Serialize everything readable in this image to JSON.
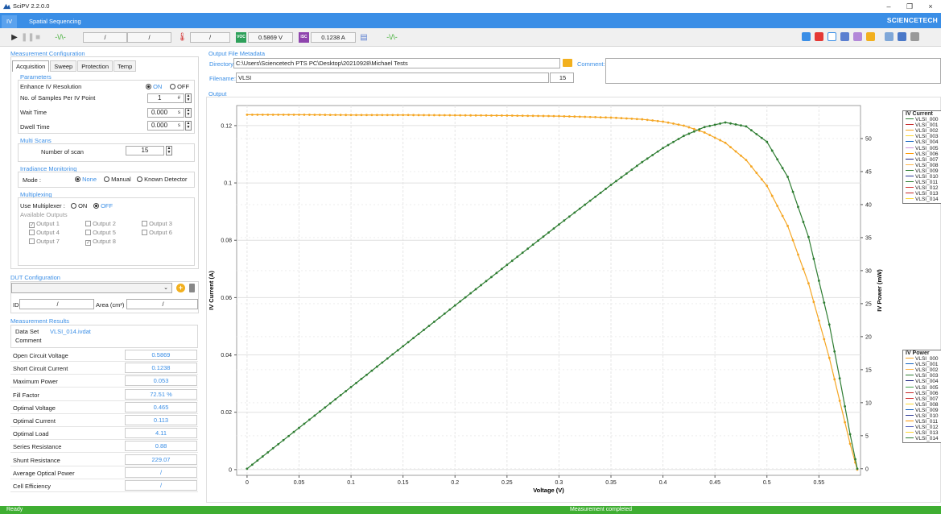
{
  "app": {
    "title": "SciPV 2.2.0.0",
    "brand": "SCIENCETECH"
  },
  "window": {
    "minimize": "–",
    "restore": "❐",
    "close": "×"
  },
  "tabs": [
    "IV",
    "Spatial Sequencing"
  ],
  "toolbar": {
    "field1": "/",
    "field2": "/",
    "temp_value": "/",
    "voc_badge": "VOC",
    "voc_value": "0.5869 V",
    "isc_badge": "ISC",
    "isc_value": "0.1238 A"
  },
  "measurement_config": {
    "title": "Measurement Configuration",
    "tabs": [
      "Acquisition",
      "Sweep",
      "Protection",
      "Temp"
    ],
    "parameters_title": "Parameters",
    "enhance_label": "Enhance IV Resolution",
    "on": "ON",
    "off": "OFF",
    "samples_label": "No. of Samples Per IV Point",
    "samples_value": "1",
    "samples_unit": "#",
    "wait_label": "Wait Time",
    "wait_value": "0.000",
    "wait_unit": "s",
    "dwell_label": "Dwell Time",
    "dwell_value": "0.000",
    "dwell_unit": "s",
    "multiscans_title": "Multi Scans",
    "scan_label": "Number of scan",
    "scan_value": "15",
    "irradiance_title": "Irradiance Monitoring",
    "mode_label": "Mode :",
    "modes": [
      "None",
      "Manual",
      "Known Detector"
    ],
    "multiplexing_title": "Multiplexing",
    "use_mux_label": "Use Multiplexer :",
    "mux_on": "ON",
    "mux_off": "OFF",
    "available_outputs": "Available Outputs",
    "outputs": [
      {
        "label": "Output 1",
        "checked": true
      },
      {
        "label": "Output 2",
        "checked": false
      },
      {
        "label": "Output 3",
        "checked": false
      },
      {
        "label": "Output 4",
        "checked": false
      },
      {
        "label": "Output 5",
        "checked": false
      },
      {
        "label": "Output 6",
        "checked": false
      },
      {
        "label": "Output 7",
        "checked": false
      },
      {
        "label": "Output 8",
        "checked": true
      }
    ]
  },
  "dut": {
    "title": "DUT Configuration",
    "id_label": "ID",
    "id_value": "/",
    "area_label": "Area (cm²)",
    "area_value": "/"
  },
  "results": {
    "title": "Measurement Results",
    "dataset_label": "Data Set",
    "dataset_value": "VLSI_014.ivdat",
    "comment_label": "Comment",
    "rows": [
      {
        "label": "Open Circuit Voltage",
        "value": "0.5869"
      },
      {
        "label": "Short Circuit Current",
        "value": "0.1238"
      },
      {
        "label": "Maximum Power",
        "value": "0.053"
      },
      {
        "label": "Fill Factor",
        "value": "72.51 %"
      },
      {
        "label": "Optimal Voltage",
        "value": "0.465"
      },
      {
        "label": "Optimal Current",
        "value": "0.113"
      },
      {
        "label": "Optimal Load",
        "value": "4.11"
      },
      {
        "label": "Series Resistance",
        "value": "0.88"
      },
      {
        "label": "Shunt Resistance",
        "value": "229.07"
      },
      {
        "label": "Average Optical Power",
        "value": "/"
      },
      {
        "label": "Cell Efficiency",
        "value": "/"
      }
    ]
  },
  "output_file": {
    "title": "Output File Metadata",
    "directory_label": "Directory:",
    "directory_value": "C:\\Users\\Sciencetech PTS PC\\Desktop\\20210928\\Michael Tests",
    "filename_label": "Filename:",
    "filename_value": "VLSI",
    "index_value": "15",
    "comment_label": "Comment:"
  },
  "output_title": "Output",
  "status": {
    "left": "Ready",
    "center": "Measurement completed"
  },
  "colors": {
    "accent": "#3a8ee6",
    "status": "#3fae32",
    "current_curve": "#f5a623",
    "power_curve": "#2e7d32"
  },
  "chart_data": {
    "type": "line",
    "xlabel": "Voltage (V)",
    "ylabel": "IV Current (A)",
    "y2label": "IV Power (mW)",
    "xlim": [
      -0.01,
      0.59
    ],
    "ylim": [
      -0.002,
      0.127
    ],
    "y2lim": [
      -1,
      55
    ],
    "xticks": [
      "0",
      "0.05",
      "0.1",
      "0.15",
      "0.2",
      "0.25",
      "0.3",
      "0.35",
      "0.4",
      "0.45",
      "0.5",
      "0.55"
    ],
    "yticks": [
      "0",
      "0.02",
      "0.04",
      "0.06",
      "0.08",
      "0.1",
      "0.12"
    ],
    "y2ticks": [
      "0",
      "5",
      "10",
      "15",
      "20",
      "25",
      "30",
      "35",
      "40",
      "45",
      "50"
    ],
    "series": [
      {
        "name": "IV Current",
        "axis": "left",
        "x": [
          0,
          0.05,
          0.1,
          0.15,
          0.2,
          0.25,
          0.3,
          0.35,
          0.38,
          0.4,
          0.42,
          0.44,
          0.46,
          0.48,
          0.5,
          0.52,
          0.54,
          0.56,
          0.57,
          0.58,
          0.5869
        ],
        "y": [
          0.1238,
          0.1238,
          0.1237,
          0.1237,
          0.1236,
          0.1235,
          0.1233,
          0.1228,
          0.1222,
          0.1214,
          0.12,
          0.1176,
          0.114,
          0.108,
          0.099,
          0.085,
          0.065,
          0.039,
          0.024,
          0.009,
          0
        ]
      },
      {
        "name": "IV Power",
        "axis": "right",
        "x": [
          0,
          0.05,
          0.1,
          0.15,
          0.2,
          0.25,
          0.3,
          0.35,
          0.38,
          0.4,
          0.42,
          0.44,
          0.46,
          0.48,
          0.5,
          0.52,
          0.54,
          0.56,
          0.57,
          0.58,
          0.5869
        ],
        "y": [
          0,
          6.19,
          12.37,
          18.55,
          24.72,
          30.88,
          36.99,
          42.98,
          46.44,
          48.56,
          50.4,
          51.74,
          52.44,
          51.84,
          49.5,
          44.2,
          35.1,
          21.84,
          13.68,
          5.22,
          0
        ]
      }
    ],
    "legend_current": {
      "title": "IV Current",
      "items": [
        "VLSI_000",
        "VLSI_001",
        "VLSI_002",
        "VLSI_003",
        "VLSI_004",
        "VLSI_005",
        "VLSI_006",
        "VLSI_007",
        "VLSI_008",
        "VLSI_009",
        "VLSI_010",
        "VLSI_011",
        "VLSI_012",
        "VLSI_013",
        "VLSI_014"
      ],
      "colors": [
        "#2e7d32",
        "#c62828",
        "#f5a623",
        "#fdd835",
        "#1565c0",
        "#ce93d8",
        "#ff9800",
        "#1a237e",
        "#ffb74d",
        "#2e7d32",
        "#283593",
        "#2e7d32",
        "#d32f2f",
        "#c62828",
        "#fdd835"
      ]
    },
    "legend_power": {
      "title": "IV Power",
      "items": [
        "VLSI_000",
        "VLSI_001",
        "VLSI_002",
        "VLSI_003",
        "VLSI_004",
        "VLSI_005",
        "VLSI_006",
        "VLSI_007",
        "VLSI_008",
        "VLSI_009",
        "VLSI_010",
        "VLSI_011",
        "VLSI_012",
        "VLSI_013",
        "VLSI_014"
      ],
      "colors": [
        "#f5a623",
        "#1565c0",
        "#ffb74d",
        "#2e7d32",
        "#1a237e",
        "#43a047",
        "#c62828",
        "#d32f2f",
        "#fdd835",
        "#1565c0",
        "#283593",
        "#ff9800",
        "#5c6bc0",
        "#fdd835",
        "#2e7d32"
      ]
    }
  }
}
